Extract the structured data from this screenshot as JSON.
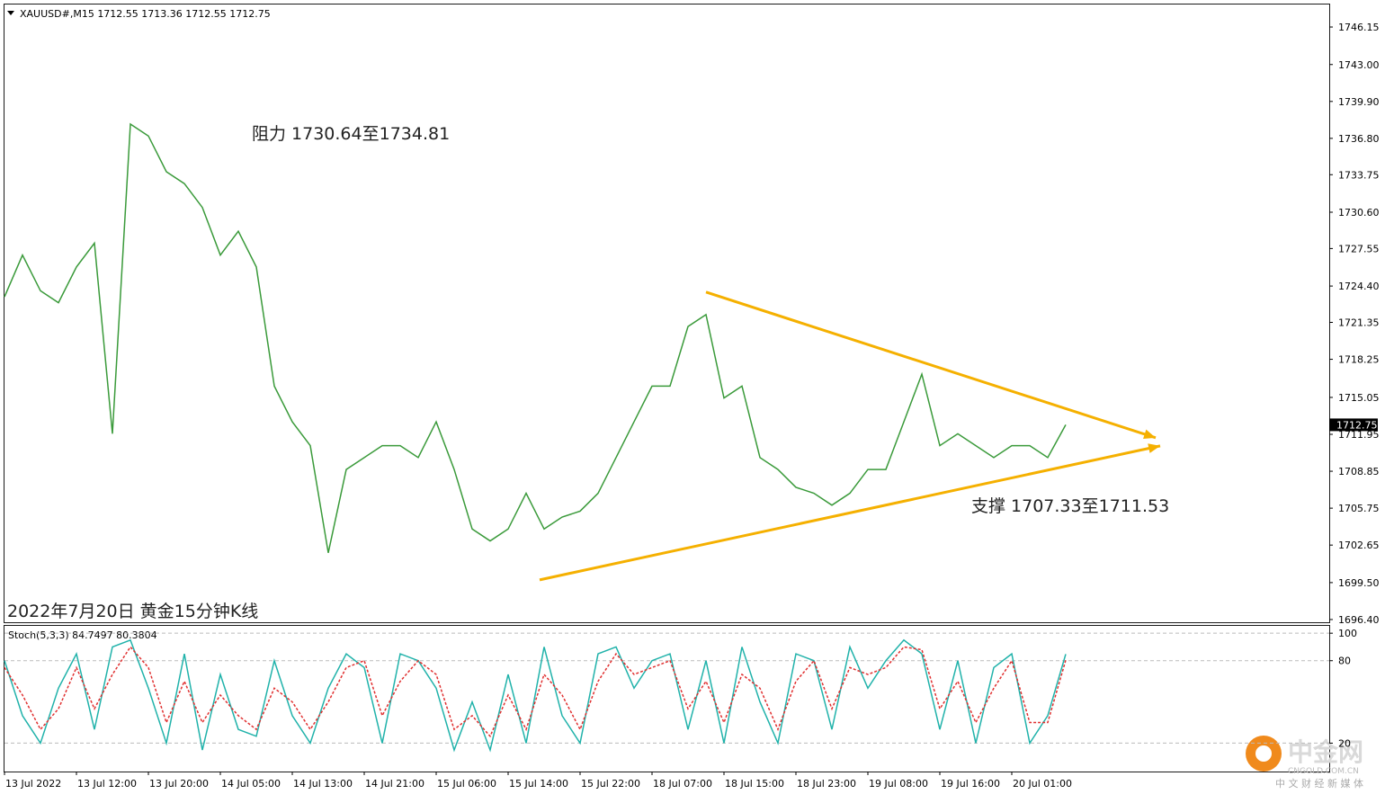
{
  "chart_data": [
    {
      "type": "line",
      "title": "XAUUSD#,M15  1712.55 1713.36 1712.55 1712.75",
      "annotations": [
        "阻力 1730.64至1734.81",
        "支撑 1707.33至1711.53",
        "2022年7月20日 黄金15分钟K线"
      ],
      "categories": [
        "13 Jul 2022",
        null,
        null,
        null,
        "13 Jul 12:00",
        null,
        null,
        null,
        "13 Jul 20:00",
        null,
        null,
        null,
        "14 Jul 05:00",
        null,
        null,
        null,
        "14 Jul 13:00",
        null,
        null,
        null,
        "14 Jul 21:00",
        null,
        null,
        null,
        "15 Jul 06:00",
        null,
        null,
        null,
        "15 Jul 14:00",
        null,
        null,
        null,
        "15 Jul 22:00",
        null,
        null,
        null,
        "18 Jul 07:00",
        null,
        null,
        null,
        "18 Jul 15:00",
        null,
        null,
        null,
        "18 Jul 23:00",
        null,
        null,
        null,
        "19 Jul 08:00",
        null,
        null,
        null,
        "19 Jul 16:00",
        null,
        null,
        null,
        "20 Jul 01:00",
        null,
        null,
        null,
        null,
        null,
        null,
        null,
        null,
        null,
        null,
        null,
        null,
        null,
        null,
        null,
        null,
        null
      ],
      "series": [
        {
          "color": "#3a9a3a",
          "values": [
            1723.5,
            1727,
            1724,
            1723,
            1726,
            1728,
            1712,
            1738,
            1737,
            1734,
            1733,
            1731,
            1727,
            1729,
            1726,
            1716,
            1713,
            1711,
            1702,
            1709,
            1710,
            1711,
            1711,
            1710,
            1713,
            1709,
            1704,
            1703,
            1704,
            1707,
            1704,
            1705,
            1705.5,
            1707,
            1710,
            1713,
            1716,
            1716,
            1721,
            1722,
            1715,
            1716,
            1710,
            1709,
            1707.5,
            1707,
            1706,
            1707,
            1709,
            1709,
            1713,
            1717,
            1711,
            1712,
            1711,
            1710,
            1711,
            1711,
            1710,
            1712.75,
            null,
            null,
            null,
            null,
            null,
            null,
            null,
            null,
            null,
            null,
            null,
            null,
            null,
            null
          ]
        }
      ],
      "trendlines": [
        {
          "color": "#f5b000",
          "x": [
            39,
            64
          ],
          "y": [
            1723.89,
            1711.66
          ]
        },
        {
          "color": "#f5b000",
          "x": [
            29.75,
            64.25
          ],
          "y": [
            1699.73,
            1710.98
          ]
        }
      ],
      "last_price": 1712.75,
      "ylim": [
        1696.17,
        1748.04
      ],
      "yticks": [
        1746.15,
        {
          "value": 1743.0,
          "label": "1743.00"
        },
        {
          "value": 1739.9,
          "label": "1739.90"
        },
        {
          "value": 1736.8,
          "label": "1736.80"
        },
        1733.75,
        {
          "value": 1730.6,
          "label": "1730.60"
        },
        1727.55,
        {
          "value": 1724.4,
          "label": "1724.40"
        },
        1721.35,
        1718.25,
        1715.05,
        1711.95,
        1708.85,
        1705.75,
        1702.65,
        {
          "value": 1699.5,
          "label": "1699.50"
        },
        {
          "value": 1696.4,
          "label": "1696.40"
        }
      ]
    },
    {
      "type": "line",
      "title": "Stoch(5,3,3) 84.7497 80.3804",
      "series": [
        {
          "color": "#20b2aa",
          "values": [
            80,
            40,
            20,
            60,
            85,
            30,
            90,
            95,
            60,
            20,
            85,
            15,
            70,
            30,
            25,
            80,
            40,
            20,
            60,
            85,
            75,
            20,
            85,
            80,
            60,
            15,
            50,
            15,
            70,
            20,
            90,
            40,
            20,
            85,
            90,
            60,
            80,
            85,
            30,
            80,
            20,
            90,
            50,
            20,
            85,
            80,
            30,
            90,
            60,
            80,
            95,
            85,
            30,
            80,
            20,
            75,
            85,
            20,
            40,
            84.7497
          ]
        },
        {
          "color": "#e03030",
          "dashed": true,
          "values": [
            75,
            55,
            30,
            45,
            75,
            45,
            70,
            90,
            75,
            35,
            65,
            35,
            55,
            40,
            30,
            60,
            50,
            30,
            50,
            75,
            80,
            40,
            65,
            80,
            70,
            30,
            40,
            25,
            55,
            30,
            70,
            55,
            30,
            65,
            85,
            70,
            75,
            80,
            45,
            65,
            35,
            70,
            60,
            30,
            65,
            80,
            45,
            75,
            70,
            75,
            90,
            88,
            45,
            65,
            35,
            60,
            80,
            35,
            35,
            80.3804
          ]
        }
      ],
      "ylim": [
        0,
        106
      ],
      "yticks": [
        100,
        80,
        20
      ]
    },
    {
      "watermark": [
        "中金网",
        "CNGOLD.COM.CN",
        "中 文 财 经 新 媒 体"
      ]
    }
  ]
}
